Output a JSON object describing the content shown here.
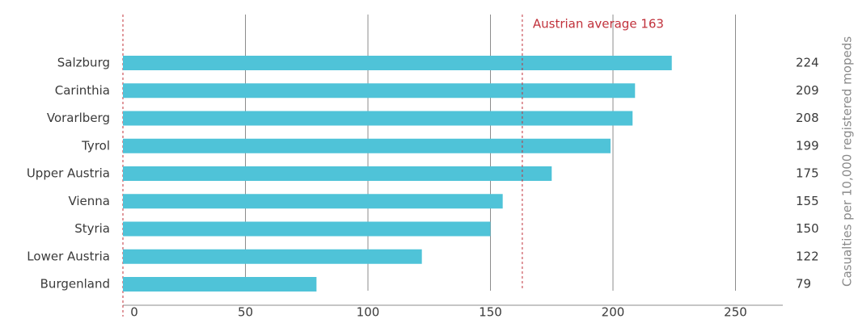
{
  "chart_data": {
    "type": "bar",
    "orientation": "horizontal",
    "categories": [
      "Salzburg",
      "Carinthia",
      "Vorarlberg",
      "Tyrol",
      "Upper Austria",
      "Vienna",
      "Styria",
      "Lower Austria",
      "Burgenland"
    ],
    "values": [
      224,
      209,
      208,
      199,
      175,
      155,
      150,
      122,
      79
    ],
    "value_labels": [
      "224",
      "209",
      "208",
      "199",
      "175",
      "155",
      "150",
      "122",
      "79"
    ],
    "ylabel": "Casualties per 10,000 registered mopeds",
    "xlim": [
      0,
      270
    ],
    "xticks": [
      0,
      50,
      100,
      150,
      200,
      250
    ],
    "xtick_labels": [
      "0",
      "50",
      "100",
      "150",
      "200",
      "250"
    ],
    "reference_line": {
      "value": 163,
      "label": "Austrian average 163"
    },
    "grid": true,
    "colors": {
      "bar": "#4fc3d8",
      "grid": "#8c8c8c",
      "reference": "#c0303a",
      "text": "#3a3a3a",
      "ylabel": "#8a8a8a"
    }
  }
}
